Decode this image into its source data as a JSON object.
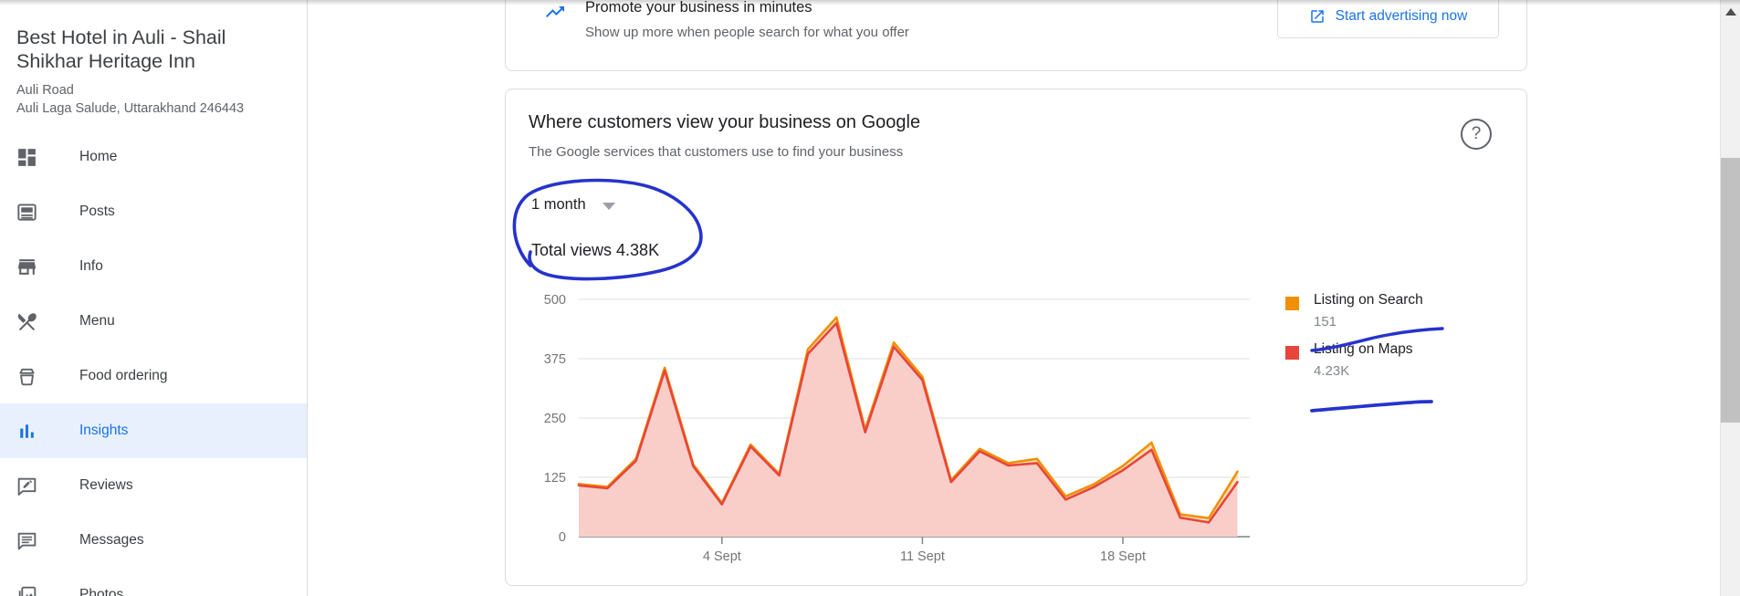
{
  "sidebar": {
    "business_name": "Best Hotel in Auli - Shail Shikhar Heritage Inn",
    "address_line1": "Auli Road",
    "address_line2": "Auli Laga Salude, Uttarakhand 246443",
    "items": [
      {
        "label": "Home",
        "icon": "dashboard-icon",
        "active": false
      },
      {
        "label": "Posts",
        "icon": "posts-icon",
        "active": false
      },
      {
        "label": "Info",
        "icon": "store-icon",
        "active": false
      },
      {
        "label": "Menu",
        "icon": "restaurant-menu-icon",
        "active": false
      },
      {
        "label": "Food ordering",
        "icon": "food-ordering-icon",
        "active": false
      },
      {
        "label": "Insights",
        "icon": "bar-chart-icon",
        "active": true
      },
      {
        "label": "Reviews",
        "icon": "rate-review-icon",
        "active": false
      },
      {
        "label": "Messages",
        "icon": "chat-icon",
        "active": false
      },
      {
        "label": "Photos",
        "icon": "photo-library-icon",
        "active": false
      }
    ]
  },
  "banner": {
    "title": "Promote your business in minutes",
    "subtitle": "Show up more when people search for what you offer",
    "cta_label": "Start advertising now",
    "accent_color": "#1A73E8"
  },
  "insights_card": {
    "title": "Where customers view your business on Google",
    "subtitle": "The Google services that customers use to find your business",
    "period_selector": "1 month",
    "total_views_label": "Total views 4.38K",
    "help_glyph": "?"
  },
  "chart_data": {
    "type": "area",
    "stacked": true,
    "ylim": [
      0,
      500
    ],
    "y_ticks": [
      0,
      125,
      250,
      375,
      500
    ],
    "n_points": 24,
    "x_ticks": [
      {
        "index": 5,
        "label": "4 Sept"
      },
      {
        "index": 12,
        "label": "11 Sept"
      },
      {
        "index": 19,
        "label": "18 Sept"
      }
    ],
    "series": [
      {
        "name": "Listing on Search",
        "legend_value": "151",
        "color": "#F09000",
        "line": "top (stacked: search + maps)",
        "values": [
          111,
          105,
          164,
          356,
          152,
          71,
          194,
          132,
          395,
          462,
          226,
          409,
          337,
          119,
          185,
          155,
          164,
          85,
          111,
          149,
          198,
          47,
          39,
          137
        ]
      },
      {
        "name": "Listing on Maps",
        "legend_value": "4.23K",
        "color": "#E8453C",
        "line": "bottom",
        "values": [
          108,
          102,
          160,
          350,
          148,
          68,
          190,
          129,
          385,
          450,
          220,
          400,
          330,
          115,
          180,
          150,
          155,
          78,
          105,
          140,
          183,
          40,
          30,
          115
        ]
      }
    ],
    "area_fill": "#F9CEC8",
    "between_fill": "rgba(242,153,26,0.30)",
    "grid_color": "#E8EAED",
    "axis_color": "#9AA0A6",
    "tick_label_color": "#757575",
    "legend_position": "right"
  },
  "annotations": {
    "pen_color": "#2633CC",
    "items": [
      "hand-drawn circle around period selector and total views",
      "hand-drawn underline below Listing on Search value",
      "hand-drawn underline below Listing on Maps value"
    ]
  }
}
